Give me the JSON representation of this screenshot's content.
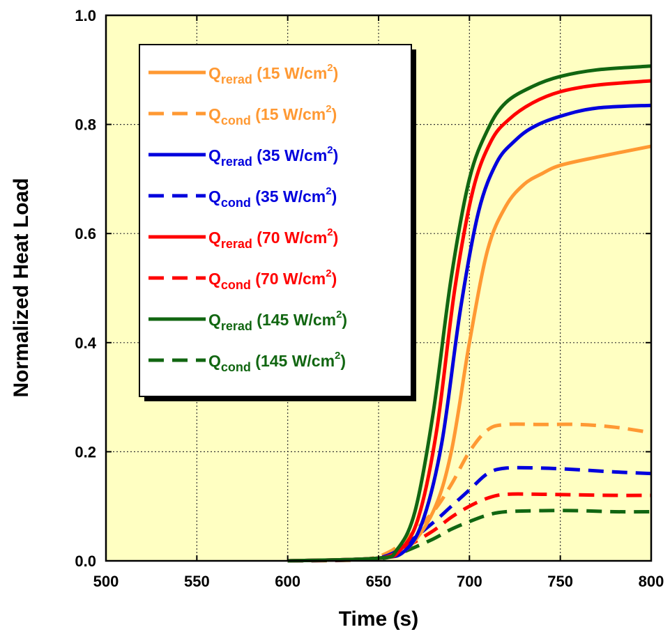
{
  "chart_data": {
    "type": "line",
    "xlabel": "Time (s)",
    "ylabel": "Normalized Heat Load",
    "xlim": [
      500,
      800
    ],
    "ylim": [
      0,
      1.0
    ],
    "x_ticks": [
      "500",
      "550",
      "600",
      "650",
      "700",
      "750",
      "800"
    ],
    "y_ticks": [
      "0.0",
      "0.2",
      "0.4",
      "0.6",
      "0.8",
      "1.0"
    ],
    "grid": true,
    "plot_background": "#FFFFC2",
    "legend_position": "top-left",
    "series": [
      {
        "name": "Qrerad (15 W/cm2)",
        "label_main": "Q",
        "label_sub": "rerad",
        "label_rest": " (15 W/cm",
        "label_sup": "2",
        "label_end": ")",
        "color": "#FF9933",
        "dash": "solid",
        "x": [
          600,
          650,
          665,
          680,
          690,
          700,
          710,
          720,
          730,
          740,
          750,
          770,
          800
        ],
        "y": [
          0,
          0.005,
          0.02,
          0.09,
          0.2,
          0.4,
          0.57,
          0.65,
          0.69,
          0.71,
          0.725,
          0.74,
          0.76
        ]
      },
      {
        "name": "Qcond (15 W/cm2)",
        "label_main": "Q",
        "label_sub": "cond",
        "label_rest": " (15 W/cm",
        "label_sup": "2",
        "label_end": ")",
        "color": "#FF9933",
        "dash": "dashed",
        "x": [
          600,
          640,
          655,
          665,
          680,
          690,
          700,
          710,
          720,
          740,
          760,
          780,
          800
        ],
        "y": [
          0,
          0.002,
          0.015,
          0.04,
          0.09,
          0.14,
          0.2,
          0.24,
          0.25,
          0.25,
          0.25,
          0.245,
          0.235
        ]
      },
      {
        "name": "Qrerad (35 W/cm2)",
        "label_main": "Q",
        "label_sub": "rerad",
        "label_rest": " (35 W/cm",
        "label_sup": "2",
        "label_end": ")",
        "color": "#0000DD",
        "dash": "solid",
        "x": [
          600,
          650,
          665,
          675,
          685,
          695,
          705,
          715,
          725,
          735,
          750,
          770,
          800
        ],
        "y": [
          0,
          0.005,
          0.02,
          0.08,
          0.22,
          0.46,
          0.64,
          0.73,
          0.77,
          0.795,
          0.815,
          0.83,
          0.835
        ]
      },
      {
        "name": "Qcond (35 W/cm2)",
        "label_main": "Q",
        "label_sub": "cond",
        "label_rest": " (35 W/cm",
        "label_sup": "2",
        "label_end": ")",
        "color": "#0000DD",
        "dash": "dashed",
        "x": [
          600,
          640,
          655,
          665,
          680,
          690,
          700,
          710,
          720,
          740,
          760,
          780,
          800
        ],
        "y": [
          0,
          0.002,
          0.01,
          0.03,
          0.07,
          0.1,
          0.13,
          0.16,
          0.17,
          0.17,
          0.167,
          0.163,
          0.16
        ]
      },
      {
        "name": "Qrerad (70 W/cm2)",
        "label_main": "Q",
        "label_sub": "rerad",
        "label_rest": " (70 W/cm",
        "label_sup": "2",
        "label_end": ")",
        "color": "#FF0000",
        "dash": "solid",
        "x": [
          600,
          650,
          662,
          672,
          682,
          692,
          702,
          712,
          722,
          735,
          750,
          770,
          800
        ],
        "y": [
          0,
          0.005,
          0.02,
          0.08,
          0.24,
          0.5,
          0.68,
          0.77,
          0.81,
          0.84,
          0.86,
          0.872,
          0.88
        ]
      },
      {
        "name": "Qcond (70 W/cm2)",
        "label_main": "Q",
        "label_sub": "cond",
        "label_rest": " (70 W/cm",
        "label_sup": "2",
        "label_end": ")",
        "color": "#FF0000",
        "dash": "dashed",
        "x": [
          600,
          640,
          655,
          665,
          680,
          690,
          700,
          710,
          720,
          740,
          760,
          780,
          800
        ],
        "y": [
          0,
          0.002,
          0.008,
          0.025,
          0.055,
          0.08,
          0.1,
          0.115,
          0.122,
          0.122,
          0.121,
          0.12,
          0.12
        ]
      },
      {
        "name": "Qrerad (145 W/cm2)",
        "label_main": "Q",
        "label_sub": "rerad",
        "label_rest": " (145 W/cm",
        "label_sup": "2",
        "label_end": ")",
        "color": "#116611",
        "dash": "solid",
        "x": [
          600,
          650,
          660,
          670,
          680,
          690,
          700,
          710,
          720,
          735,
          750,
          770,
          800
        ],
        "y": [
          0,
          0.005,
          0.02,
          0.09,
          0.27,
          0.52,
          0.7,
          0.79,
          0.84,
          0.87,
          0.888,
          0.9,
          0.907
        ]
      },
      {
        "name": "Qcond (145 W/cm2)",
        "label_main": "Q",
        "label_sub": "cond",
        "label_rest": " (145 W/cm",
        "label_sup": "2",
        "label_end": ")",
        "color": "#116611",
        "dash": "dashed",
        "x": [
          600,
          640,
          655,
          665,
          680,
          690,
          700,
          710,
          720,
          740,
          760,
          780,
          800
        ],
        "y": [
          0,
          0.002,
          0.006,
          0.018,
          0.04,
          0.058,
          0.072,
          0.084,
          0.09,
          0.092,
          0.092,
          0.09,
          0.09
        ]
      }
    ]
  }
}
